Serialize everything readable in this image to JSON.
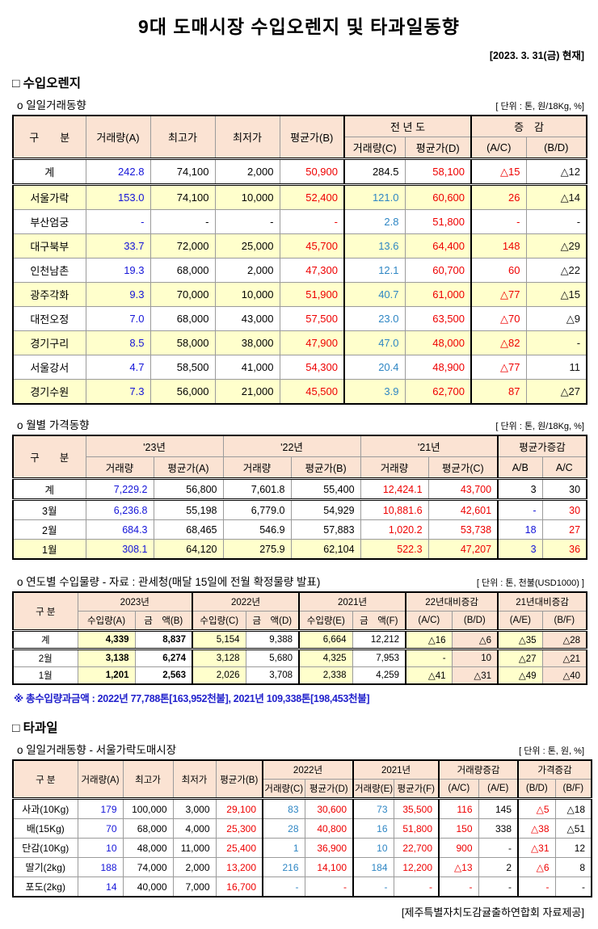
{
  "page": {
    "title": "9대 도매시장 수입오렌지 및 타과일동향",
    "date": "[2023. 3. 31(금) 현재]",
    "footer": "[제주특별자치도감귤출하연합회 자료제공]"
  },
  "orange": {
    "heading": "□ 수입오렌지",
    "daily": {
      "heading": "o 일일거래동향",
      "unit": "[ 단위 : 톤, 원/18Kg, %]",
      "head": {
        "gubun": "구　　분",
        "vol_a": "거래량(A)",
        "high": "최고가",
        "low": "최저가",
        "avg_b": "평균가(B)",
        "prev_year": "전 년 도",
        "vol_c": "거래량(C)",
        "avg_d": "평균가(D)",
        "change": "증　감",
        "ac": "(A/C)",
        "bd": "(B/D)"
      },
      "table": {
        "col_classes": [
          "blue",
          "num",
          "num",
          "red",
          "teal",
          "red",
          "red",
          "dark"
        ],
        "rows": [
          {
            "label": "계",
            "total": true,
            "cls": [
              "blue",
              "num",
              "num",
              "red",
              "num",
              "red",
              "red",
              "dark"
            ],
            "cells": [
              "242.8",
              "74,100",
              "2,000",
              "50,900",
              "284.5",
              "58,100",
              "△15",
              "△12"
            ]
          },
          {
            "label": "서울가락",
            "hl": true,
            "cells": [
              "153.0",
              "74,100",
              "10,000",
              "52,400",
              "121.0",
              "60,600",
              "26",
              "△14"
            ]
          },
          {
            "label": "부산엄궁",
            "cells": [
              "-",
              "-",
              "-",
              "-",
              "2.8",
              "51,800",
              "-",
              "-"
            ]
          },
          {
            "label": "대구북부",
            "hl": true,
            "cells": [
              "33.7",
              "72,000",
              "25,000",
              "45,700",
              "13.6",
              "64,400",
              "148",
              "△29"
            ]
          },
          {
            "label": "인천남촌",
            "cells": [
              "19.3",
              "68,000",
              "2,000",
              "47,300",
              "12.1",
              "60,700",
              "60",
              "△22"
            ]
          },
          {
            "label": "광주각화",
            "hl": true,
            "cells": [
              "9.3",
              "70,000",
              "10,000",
              "51,900",
              "40.7",
              "61,000",
              "△77",
              "△15"
            ]
          },
          {
            "label": "대전오정",
            "cells": [
              "7.0",
              "68,000",
              "43,000",
              "57,500",
              "23.0",
              "63,500",
              "△70",
              "△9"
            ]
          },
          {
            "label": "경기구리",
            "hl": true,
            "cells": [
              "8.5",
              "58,000",
              "38,000",
              "47,900",
              "47.0",
              "48,000",
              "△82",
              "-"
            ]
          },
          {
            "label": "서울강서",
            "cells": [
              "4.7",
              "58,500",
              "41,000",
              "54,300",
              "20.4",
              "48,900",
              "△77",
              "11"
            ]
          },
          {
            "label": "경기수원",
            "hl": true,
            "cells": [
              "7.3",
              "56,000",
              "21,000",
              "45,500",
              "3.9",
              "62,700",
              "87",
              "△27"
            ]
          }
        ]
      }
    },
    "monthly": {
      "heading": "o 월별 가격동향",
      "unit": "[ 단위 : 톤, 원/18Kg, %]",
      "head": {
        "gubun": "구　　분",
        "y23": "'23년",
        "y22": "'22년",
        "y21": "'21년",
        "chg": "평균가증감",
        "vol": "거래량",
        "avg_a": "평균가(A)",
        "avg_b": "평균가(B)",
        "avg_c": "평균가(C)",
        "ab": "A/B",
        "ac": "A/C"
      },
      "table": {
        "col_classes": [
          "blue",
          "num",
          "num",
          "num",
          "red",
          "red",
          "blue",
          "red"
        ],
        "rows": [
          {
            "label": "계",
            "total": true,
            "cls": [
              "blue",
              "num",
              "num",
              "num",
              "red",
              "red",
              "num",
              "num"
            ],
            "cells": [
              "7,229.2",
              "56,800",
              "7,601.8",
              "55,400",
              "12,424.1",
              "43,700",
              "3",
              "30"
            ]
          },
          {
            "label": "3월",
            "cells": [
              "6,236.8",
              "55,198",
              "6,779.0",
              "54,929",
              "10,881.6",
              "42,601",
              "-",
              "30"
            ]
          },
          {
            "label": "2월",
            "cells": [
              "684.3",
              "68,465",
              "546.9",
              "57,883",
              "1,020.2",
              "53,738",
              "18",
              "27"
            ]
          },
          {
            "label": "1월",
            "hl": true,
            "cells": [
              "308.1",
              "64,120",
              "275.9",
              "62,104",
              "522.3",
              "47,207",
              "3",
              "36"
            ]
          }
        ]
      }
    },
    "yearly": {
      "heading": "o 연도별 수입물량 - 자료 : 관세청(매달 15일에 전월 확정물량 발표)",
      "unit": "[ 단위 : 톤, 천불(USD1000) ]",
      "head": {
        "gubun": "구 분",
        "y2023": "2023년",
        "y2022": "2022년",
        "y2021": "2021년",
        "chg22": "22년대비증감",
        "chg21": "21년대비증감",
        "imp_a": "수입량(A)",
        "amt_b": "금　액(B)",
        "imp_c": "수입량(C)",
        "amt_d": "금　액(D)",
        "imp_e": "수입량(E)",
        "amt_f": "금　액(F)",
        "ac": "(A/C)",
        "bd": "(B/D)",
        "ae": "(A/E)",
        "bf": "(B/F)"
      },
      "table": {
        "col_classes": [
          "num bold yellow",
          "num bold",
          "num yellow",
          "num",
          "num yellow",
          "num",
          "num yellow",
          "num peach",
          "num yellow",
          "num peach"
        ],
        "rows": [
          {
            "label": "계",
            "total": true,
            "cells": [
              "4,339",
              "8,837",
              "5,154",
              "9,388",
              "6,664",
              "12,212",
              "△16",
              "△6",
              "△35",
              "△28"
            ]
          },
          {
            "label": "2월",
            "cells": [
              "3,138",
              "6,274",
              "3,128",
              "5,680",
              "4,325",
              "7,953",
              "-",
              "10",
              "△27",
              "△21"
            ]
          },
          {
            "label": "1월",
            "cells": [
              "1,201",
              "2,563",
              "2,026",
              "3,708",
              "2,338",
              "4,259",
              "△41",
              "△31",
              "△49",
              "△40"
            ]
          }
        ]
      },
      "note": "※ 총수입량과금액 : 2022년 77,788톤[163,952천불],  2021년 109,338톤[198,453천불]"
    }
  },
  "fruit": {
    "heading": "□ 타과일",
    "daily": {
      "heading": "o 일일거래동향 - 서울가락도매시장",
      "unit": "[ 단위 : 톤, 원, %]",
      "head": {
        "gubun": "구 분",
        "vol_a": "거래량(A)",
        "high": "최고가",
        "low": "최저가",
        "avg_b": "평균가(B)",
        "y2022": "2022년",
        "y2021": "2021년",
        "vol_chg": "거래량증감",
        "price_chg": "가격증감",
        "vol_c": "거래량(C)",
        "avg_d": "평균가(D)",
        "vol_e": "거래량(E)",
        "avg_f": "평균가(F)",
        "ac": "(A/C)",
        "ae": "(A/E)",
        "bd": "(B/D)",
        "bf": "(B/F)"
      },
      "table": {
        "col_classes": [
          "blue",
          "num",
          "num",
          "red",
          "teal",
          "red",
          "teal",
          "red",
          "red",
          "num",
          "red",
          "num"
        ],
        "rows": [
          {
            "label": "사과(10Kg)",
            "cells": [
              "179",
              "100,000",
              "3,000",
              "29,100",
              "83",
              "30,600",
              "73",
              "35,500",
              "116",
              "145",
              "△5",
              "△18"
            ]
          },
          {
            "label": "배(15Kg)",
            "cells": [
              "70",
              "68,000",
              "4,000",
              "25,300",
              "28",
              "40,800",
              "16",
              "51,800",
              "150",
              "338",
              "△38",
              "△51"
            ]
          },
          {
            "label": "단감(10Kg)",
            "cells": [
              "10",
              "48,000",
              "11,000",
              "25,400",
              "1",
              "36,900",
              "10",
              "22,700",
              "900",
              "-",
              "△31",
              "12"
            ]
          },
          {
            "label": "딸기(2kg)",
            "cells": [
              "188",
              "74,000",
              "2,000",
              "13,200",
              "216",
              "14,100",
              "184",
              "12,200",
              "△13",
              "2",
              "△6",
              "8"
            ]
          },
          {
            "label": "포도(2kg)",
            "cells": [
              "14",
              "40,000",
              "7,000",
              "16,700",
              "-",
              "-",
              "-",
              "-",
              "-",
              "-",
              "-",
              "-"
            ]
          }
        ]
      }
    }
  }
}
